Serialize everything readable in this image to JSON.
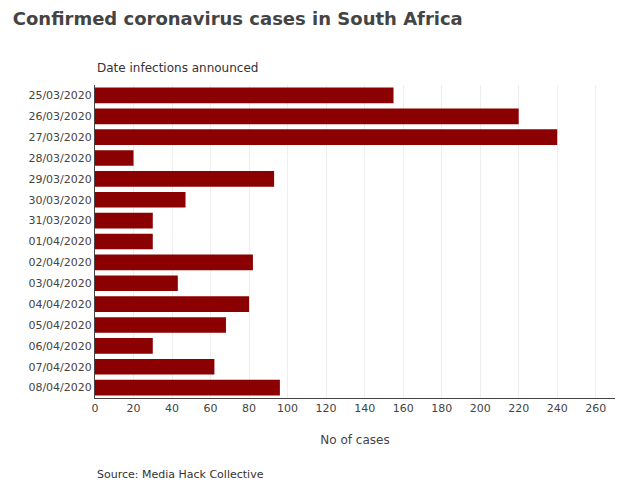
{
  "chart_data": {
    "type": "bar",
    "orientation": "horizontal",
    "title": "Confirmed coronavirus cases in South Africa",
    "subtitle": "Date infections announced",
    "xlabel": "No of cases",
    "source": "Source: Media Hack Collective",
    "categories": [
      "25/03/2020",
      "26/03/2020",
      "27/03/2020",
      "28/03/2020",
      "29/03/2020",
      "30/03/2020",
      "31/03/2020",
      "01/04/2020",
      "02/04/2020",
      "03/04/2020",
      "04/04/2020",
      "05/04/2020",
      "06/04/2020",
      "07/04/2020",
      "08/04/2020"
    ],
    "values": [
      155,
      220,
      240,
      20,
      93,
      47,
      30,
      30,
      82,
      43,
      80,
      68,
      30,
      62,
      96
    ],
    "color": "#8B0000",
    "xlim": [
      0,
      270
    ],
    "xticks": [
      0,
      20,
      40,
      60,
      80,
      100,
      120,
      140,
      160,
      180,
      200,
      220,
      240,
      260
    ],
    "grid": true
  }
}
